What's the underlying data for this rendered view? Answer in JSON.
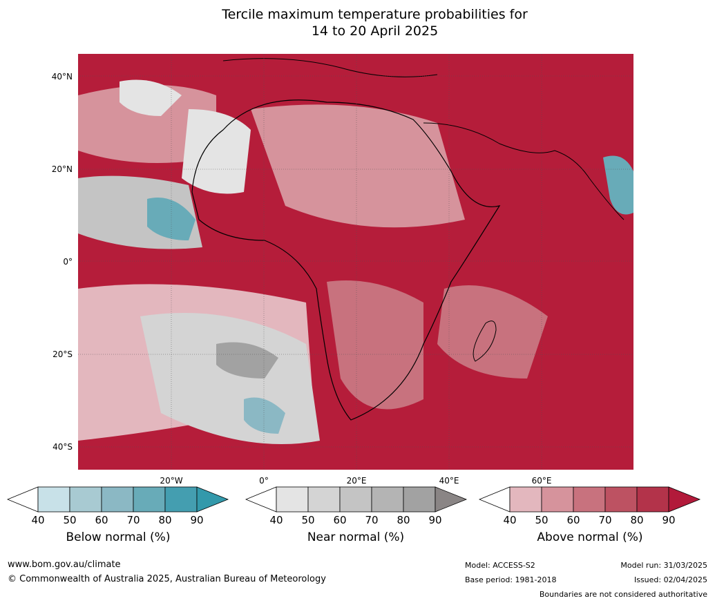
{
  "title": {
    "line1": "Tercile maximum temperature probabilities for",
    "line2": "14 to 20 April 2025"
  },
  "map": {
    "lat_labels": [
      "40°N",
      "20°N",
      "0°",
      "20°S",
      "40°S"
    ],
    "lon_labels": [
      "20°W",
      "0°",
      "20°E",
      "40°E",
      "60°E"
    ]
  },
  "colorbars": [
    {
      "title": "Below normal (%)",
      "ticks": [
        "40",
        "50",
        "60",
        "70",
        "80",
        "90"
      ],
      "colors": [
        "#ffffff",
        "#c8e1e8",
        "#a8cad2",
        "#8bb8c4",
        "#68abb8",
        "#449eb0",
        "#3399ab"
      ]
    },
    {
      "title": "Near normal (%)",
      "ticks": [
        "40",
        "50",
        "60",
        "70",
        "80",
        "90"
      ],
      "colors": [
        "#ffffff",
        "#e4e4e4",
        "#d4d4d4",
        "#c4c4c4",
        "#b4b4b4",
        "#a2a2a2",
        "#8a8585"
      ]
    },
    {
      "title": "Above normal (%)",
      "ticks": [
        "40",
        "50",
        "60",
        "70",
        "80",
        "90"
      ],
      "colors": [
        "#ffffff",
        "#e3b7be",
        "#d6939c",
        "#c8727e",
        "#bd5262",
        "#b3334a",
        "#b21a3a"
      ]
    }
  ],
  "footer": {
    "website": "www.bom.gov.au/climate",
    "copyright": "© Commonwealth of Australia 2025, Australian Bureau of Meteorology",
    "model": "Model: ACCESS-S2",
    "base_period": "Base period: 1981-2018",
    "model_run": "Model run: 31/03/2025",
    "issued": "Issued: 02/04/2025",
    "disclaimer": "Boundaries are not considered authoritative"
  }
}
